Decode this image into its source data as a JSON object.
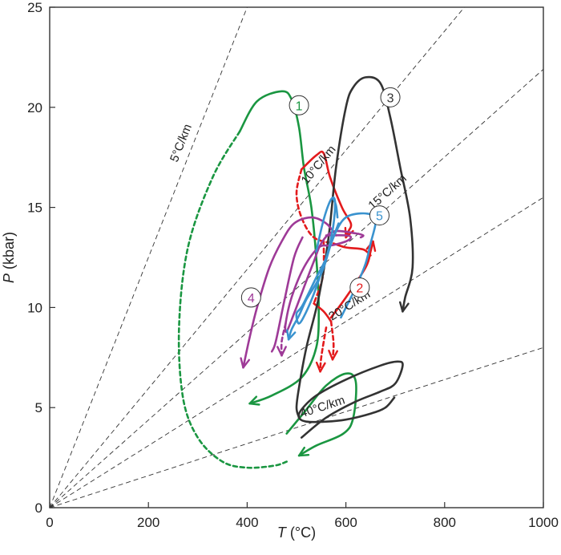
{
  "chart_data": {
    "type": "line",
    "xlabel_italic": "T",
    "xlabel_unit": " (°C)",
    "ylabel_italic": "P",
    "ylabel_unit": " (kbar)",
    "xlim": [
      0,
      1000
    ],
    "ylim": [
      0,
      25
    ],
    "xticks": [
      0,
      200,
      400,
      600,
      800,
      1000
    ],
    "yticks": [
      0,
      5,
      10,
      15,
      20,
      25
    ],
    "grid": false,
    "colors": {
      "path1": "#1a9641",
      "path2": "#e31a1c",
      "path3": "#333333",
      "path4": "#9e3a97",
      "path5": "#3a93cf",
      "geotherm": "#333333"
    },
    "geotherms": [
      {
        "label": "5°C/km",
        "end": [
          400,
          25
        ]
      },
      {
        "label": "10°C/km",
        "end": [
          840,
          25
        ]
      },
      {
        "label": "15°C/km",
        "end": [
          1000,
          21.9
        ]
      },
      {
        "label": "20°C/km",
        "end": [
          1000,
          15.5
        ]
      },
      {
        "label": "40°C/km",
        "end": [
          1000,
          8.0
        ]
      }
    ],
    "series": [
      {
        "name": "1",
        "color": "#1a9641",
        "label_point": [
          505,
          20.1
        ],
        "segments": [
          {
            "style": "dashed",
            "points": [
              [
                385,
                18.8
              ],
              [
                330,
                16.5
              ],
              [
                280,
                13
              ],
              [
                262,
                9
              ],
              [
                270,
                5.5
              ],
              [
                300,
                3.5
              ],
              [
                350,
                2.3
              ],
              [
                400,
                2.0
              ],
              [
                455,
                2.1
              ],
              [
                480,
                2.3
              ]
            ]
          },
          {
            "style": "solid",
            "points": [
              [
                385,
                18.8
              ],
              [
                420,
                20.3
              ],
              [
                470,
                20.8
              ],
              [
                490,
                20.4
              ],
              [
                505,
                19
              ],
              [
                515,
                17
              ],
              [
                530,
                15
              ],
              [
                540,
                12.5
              ],
              [
                545,
                10
              ],
              [
                540,
                8
              ],
              [
                510,
                6.5
              ],
              [
                450,
                5.6
              ],
              [
                405,
                5.2
              ]
            ],
            "arrow_end": true
          },
          {
            "style": "solid",
            "points": [
              [
                480,
                3.7
              ],
              [
                520,
                4.9
              ],
              [
                560,
                6.1
              ],
              [
                600,
                6.7
              ],
              [
                620,
                6.3
              ],
              [
                615,
                4.5
              ],
              [
                595,
                3.7
              ],
              [
                540,
                3.1
              ],
              [
                505,
                2.6
              ]
            ],
            "arrow_end": true
          }
        ]
      },
      {
        "name": "2",
        "color": "#e31a1c",
        "label_point": [
          628,
          11.0
        ],
        "segments": [
          {
            "style": "dashed",
            "points": [
              [
                510,
                16.9
              ],
              [
                500,
                15.7
              ],
              [
                510,
                14.5
              ],
              [
                535,
                13.5
              ],
              [
                575,
                13.2
              ]
            ]
          },
          {
            "style": "solid",
            "points": [
              [
                510,
                16.9
              ],
              [
                540,
                17.6
              ],
              [
                555,
                17.7
              ],
              [
                568,
                16.5
              ],
              [
                592,
                15.0
              ],
              [
                610,
                14.2
              ],
              [
                605,
                13.8
              ],
              [
                600,
                13.5
              ]
            ],
            "arrow_end": true
          },
          {
            "style": "solid",
            "points": [
              [
                575,
                13.2
              ],
              [
                600,
                13.0
              ],
              [
                635,
                12.9
              ],
              [
                650,
                12.6
              ]
            ]
          },
          {
            "style": "dashed",
            "points": [
              [
                555,
                13.3
              ],
              [
                555,
                12.0
              ],
              [
                550,
                11.2
              ],
              [
                535,
                10.2
              ]
            ]
          },
          {
            "style": "solid",
            "points": [
              [
                535,
                10.2
              ],
              [
                555,
                9.8
              ],
              [
                570,
                9.3
              ]
            ]
          },
          {
            "style": "dashed",
            "points": [
              [
                570,
                9.3
              ],
              [
                575,
                8.2
              ],
              [
                573,
                7.4
              ]
            ],
            "arrow_end": true
          },
          {
            "style": "dashed",
            "points": [
              [
                560,
                9.0
              ],
              [
                550,
                7.5
              ],
              [
                548,
                6.8
              ]
            ],
            "arrow_end": true
          },
          {
            "style": "solid",
            "points": [
              [
                570,
                9.5
              ],
              [
                600,
                10.5
              ],
              [
                640,
                12.0
              ],
              [
                650,
                12.8
              ],
              [
                655,
                13.3
              ]
            ],
            "arrow_end": true
          }
        ]
      },
      {
        "name": "3",
        "color": "#333333",
        "label_point": [
          690,
          20.5
        ],
        "segments": [
          {
            "style": "solid",
            "points": [
              [
                510,
                3.5
              ],
              [
                560,
                4.5
              ],
              [
                620,
                5.3
              ],
              [
                670,
                5.8
              ],
              [
                700,
                6.2
              ],
              [
                715,
                7.1
              ],
              [
                705,
                7.3
              ],
              [
                670,
                7.1
              ],
              [
                600,
                6.4
              ],
              [
                540,
                5.6
              ],
              [
                510,
                4.9
              ],
              [
                505,
                4.5
              ],
              [
                520,
                4.3
              ],
              [
                560,
                4.3
              ],
              [
                600,
                4.4
              ],
              [
                650,
                4.7
              ],
              [
                680,
                5.0
              ],
              [
                698,
                5.5
              ]
            ]
          },
          {
            "style": "solid",
            "points": [
              [
                505,
                4.5
              ],
              [
                500,
                5.0
              ],
              [
                505,
                6.0
              ],
              [
                520,
                8.0
              ],
              [
                545,
                10.5
              ],
              [
                565,
                13.5
              ],
              [
                580,
                17.0
              ],
              [
                600,
                20.0
              ],
              [
                615,
                21.0
              ],
              [
                640,
                21.5
              ],
              [
                670,
                21.2
              ],
              [
                690,
                19.5
              ],
              [
                710,
                17.0
              ],
              [
                730,
                14.5
              ],
              [
                735,
                12.0
              ],
              [
                720,
                10.5
              ],
              [
                715,
                9.8
              ]
            ],
            "arrow_end": true
          }
        ]
      },
      {
        "name": "4",
        "color": "#9e3a97",
        "label_point": [
          408,
          10.5
        ],
        "segments": [
          {
            "style": "solid",
            "points": [
              [
                580,
                13.6
              ],
              [
                560,
                14.2
              ],
              [
                530,
                14.5
              ],
              [
                495,
                14.2
              ],
              [
                470,
                13.3
              ],
              [
                445,
                12.0
              ],
              [
                420,
                10.0
              ],
              [
                405,
                8.5
              ],
              [
                392,
                7.0
              ]
            ],
            "arrow_end": true
          },
          {
            "style": "solid",
            "points": [
              [
                560,
                13.6
              ],
              [
                600,
                13.6
              ],
              [
                610,
                13.5
              ],
              [
                600,
                13.3
              ],
              [
                570,
                13.1
              ],
              [
                545,
                13.0
              ],
              [
                515,
                12.0
              ],
              [
                490,
                10.5
              ],
              [
                478,
                9.2
              ],
              [
                480,
                8.8
              ],
              [
                495,
                9.7
              ],
              [
                515,
                11.0
              ],
              [
                535,
                12.3
              ],
              [
                550,
                13.2
              ],
              [
                575,
                13.8
              ],
              [
                620,
                13.7
              ],
              [
                635,
                13.6
              ],
              [
                630,
                13.5
              ]
            ]
          },
          {
            "style": "solid",
            "points": [
              [
                512,
                13.5
              ],
              [
                495,
                12.5
              ],
              [
                475,
                10.3
              ],
              [
                458,
                8.3
              ],
              [
                450,
                7.8
              ]
            ]
          },
          {
            "style": "dashed",
            "points": [
              [
                478,
                9.2
              ],
              [
                470,
                8.3
              ],
              [
                470,
                7.6
              ]
            ],
            "arrow_end": true
          }
        ]
      },
      {
        "name": "5",
        "color": "#3a93cf",
        "label_point": [
          668,
          14.6
        ],
        "segments": [
          {
            "style": "solid",
            "points": [
              [
                540,
                12.8
              ],
              [
                555,
                14.4
              ],
              [
                570,
                15.4
              ],
              [
                578,
                15.3
              ],
              [
                574,
                14.0
              ],
              [
                560,
                12.5
              ],
              [
                540,
                11.5
              ],
              [
                512,
                10.1
              ],
              [
                500,
                9.7
              ],
              [
                505,
                9.2
              ],
              [
                520,
                9.8
              ],
              [
                540,
                11.0
              ],
              [
                560,
                12.5
              ],
              [
                580,
                13.8
              ],
              [
                600,
                14.5
              ],
              [
                630,
                14.7
              ],
              [
                655,
                14.6
              ],
              [
                660,
                14.2
              ],
              [
                650,
                13.2
              ],
              [
                640,
                12.2
              ],
              [
                620,
                11.0
              ],
              [
                600,
                10.0
              ],
              [
                590,
                9.5
              ]
            ]
          },
          {
            "style": "solid",
            "points": [
              [
                585,
                14.2
              ],
              [
                570,
                13.2
              ],
              [
                555,
                12.0
              ],
              [
                540,
                11.2
              ],
              [
                520,
                10.4
              ],
              [
                505,
                9.6
              ],
              [
                490,
                8.9
              ],
              [
                484,
                8.4
              ]
            ],
            "arrow_end": true
          },
          {
            "style": "solid",
            "points": [
              [
                575,
                15.4
              ],
              [
                580,
                15.1
              ],
              [
                583,
                14.5
              ]
            ]
          }
        ]
      }
    ]
  }
}
